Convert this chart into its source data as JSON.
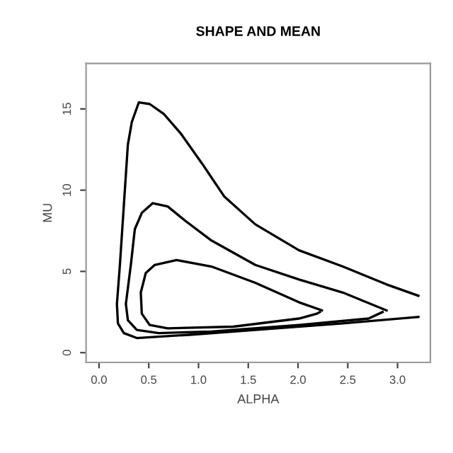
{
  "chart_data": {
    "type": "line",
    "title": "SHAPE AND MEAN",
    "xlabel": "ALPHA",
    "ylabel": "MU",
    "xlim": [
      -0.13,
      3.33
    ],
    "ylim": [
      -0.6,
      17.8
    ],
    "xticks": [
      {
        "value": 0,
        "label": "0.0"
      },
      0.5,
      {
        "value": 1,
        "label": "1.0"
      },
      1.5,
      {
        "value": 2,
        "label": "2.0"
      },
      2.5,
      {
        "value": 3,
        "label": "3.0"
      }
    ],
    "yticks": [
      0,
      5,
      10,
      15
    ],
    "grid": false,
    "marker": "none",
    "line_style": "solid",
    "series": [
      {
        "color": "#000000",
        "x": [
          3.21,
          2.89,
          2.45,
          2.01,
          1.57,
          1.26,
          1.04,
          0.82,
          0.65,
          0.51,
          0.4,
          0.33,
          0.29,
          0.25,
          0.21,
          0.18,
          0.19,
          0.25,
          0.38,
          0.91,
          1.57,
          2.45,
          3.21
        ],
        "values": [
          3.5,
          4.2,
          5.3,
          6.3,
          7.9,
          9.6,
          11.6,
          13.5,
          14.7,
          15.3,
          15.4,
          14.2,
          12.8,
          9.1,
          5.4,
          3.0,
          1.8,
          1.2,
          0.9,
          1.1,
          1.4,
          1.8,
          2.2
        ]
      },
      {
        "color": "#000000",
        "x": [
          2.89,
          2.45,
          2.01,
          1.57,
          1.13,
          0.87,
          0.69,
          0.54,
          0.43,
          0.36,
          0.32,
          0.27,
          0.29,
          0.38,
          0.6,
          1.13,
          2.01,
          2.71,
          2.85
        ],
        "values": [
          2.6,
          3.7,
          4.5,
          5.4,
          6.9,
          8.1,
          9.0,
          9.2,
          8.6,
          7.6,
          5.4,
          3.0,
          2.0,
          1.4,
          1.2,
          1.3,
          1.7,
          2.1,
          2.5
        ]
      },
      {
        "color": "#000000",
        "x": [
          2.24,
          2.01,
          1.57,
          1.13,
          0.78,
          0.56,
          0.47,
          0.42,
          0.43,
          0.51,
          0.69,
          1.35,
          2.01,
          2.19,
          2.22
        ],
        "values": [
          2.6,
          3.1,
          4.3,
          5.3,
          5.7,
          5.4,
          4.9,
          3.7,
          2.4,
          1.7,
          1.5,
          1.6,
          2.1,
          2.4,
          2.5
        ]
      }
    ]
  }
}
